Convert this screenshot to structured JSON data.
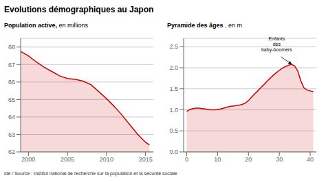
{
  "title": "Evolutions démographiques au Japon",
  "source": "idé / Source : Institut national de recherche sur la population et la sécurité sociale",
  "chart_data": [
    {
      "type": "area",
      "title": "Population active,",
      "subtitle": "en millions",
      "x": [
        1999,
        2000,
        2001,
        2002,
        2003,
        2004,
        2005,
        2006,
        2007,
        2008,
        2009,
        2010,
        2011,
        2012,
        2013,
        2014,
        2015,
        2015.5
      ],
      "values": [
        67.75,
        67.5,
        67.15,
        66.85,
        66.6,
        66.35,
        66.2,
        66.15,
        66.05,
        65.85,
        65.45,
        65.05,
        64.6,
        64.1,
        63.55,
        63.0,
        62.55,
        62.4
      ],
      "color": "#cc0000",
      "xlim": [
        1999,
        2016
      ],
      "ylim": [
        62,
        68.5
      ],
      "xticks": [
        2000,
        2005,
        2010,
        2015
      ],
      "yticks": [
        62,
        63,
        64,
        65,
        66,
        67,
        68
      ],
      "grid": true
    },
    {
      "type": "area",
      "title": "Pyramide des âges",
      "subtitle": ", en m",
      "x": [
        0,
        1,
        2,
        3,
        4,
        5,
        6,
        7,
        8,
        9,
        10,
        11,
        12,
        13,
        14,
        15,
        16,
        17,
        18,
        19,
        20,
        21,
        22,
        23,
        24,
        25,
        26,
        27,
        28,
        29,
        30,
        31,
        32,
        33,
        34,
        35,
        36,
        37,
        38,
        39,
        40,
        41
      ],
      "values": [
        0.96,
        1.01,
        1.03,
        1.04,
        1.04,
        1.03,
        1.02,
        1.01,
        1.0,
        1.0,
        1.01,
        1.02,
        1.04,
        1.06,
        1.08,
        1.09,
        1.1,
        1.11,
        1.13,
        1.16,
        1.22,
        1.3,
        1.38,
        1.45,
        1.53,
        1.6,
        1.68,
        1.75,
        1.82,
        1.88,
        1.94,
        1.99,
        2.03,
        2.06,
        2.08,
        2.04,
        1.92,
        1.68,
        1.52,
        1.47,
        1.45,
        1.43
      ],
      "color": "#cc0000",
      "xlim": [
        -1,
        42
      ],
      "ylim": [
        0,
        2.7
      ],
      "xticks": [
        0,
        10,
        20,
        30,
        40
      ],
      "yticks": [
        {
          "value": 0,
          "label": "0.0"
        },
        0.5,
        {
          "value": 1,
          "label": "1.0"
        },
        1.5,
        {
          "value": 2,
          "label": "2.0"
        },
        2.5
      ],
      "grid": true,
      "annotations": [
        {
          "text": "Enfants\ndes\nbaby-boomers",
          "x": 34.5,
          "y": 2.05
        }
      ]
    }
  ]
}
